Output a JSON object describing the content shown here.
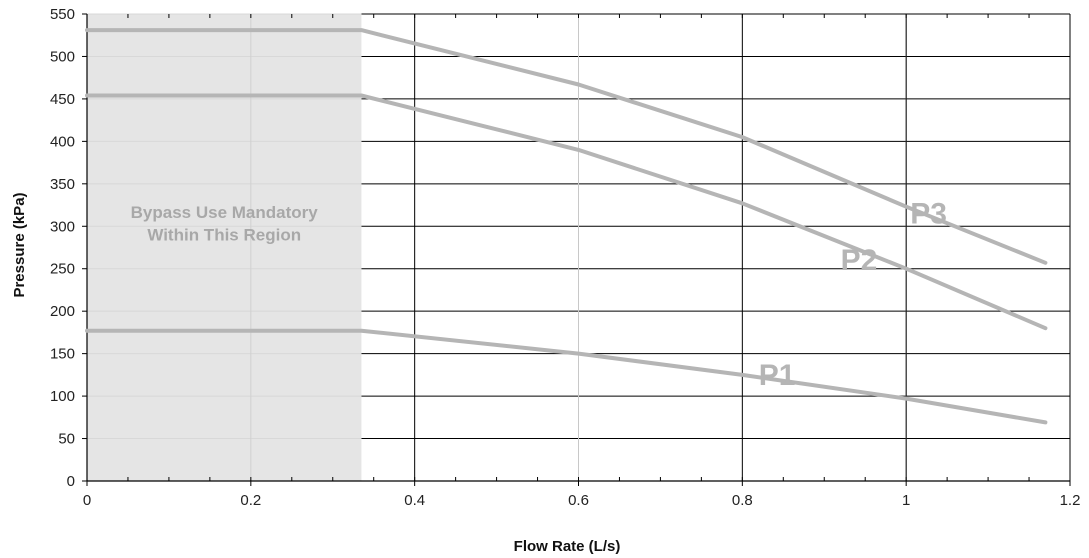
{
  "chart_data": {
    "type": "line",
    "xlabel": "Flow Rate (L/s)",
    "ylabel": "Pressure (kPa)",
    "xlim": [
      0,
      1.2
    ],
    "ylim": [
      0,
      550
    ],
    "x_ticks": [
      "0",
      "0.2",
      "0.4",
      "0.6",
      "0.8",
      "1",
      "1.2"
    ],
    "y_ticks": [
      "0",
      "50",
      "100",
      "150",
      "200",
      "250",
      "300",
      "350",
      "400",
      "450",
      "500",
      "550"
    ],
    "grid": true,
    "region": {
      "x_range": [
        0,
        0.335
      ],
      "label_line1": "Bypass Use Mandatory",
      "label_line2": "Within This Region",
      "color": "#e5e5e5",
      "text_color": "#a8a8a8"
    },
    "series_color": "#b5b5b5",
    "series": [
      {
        "name": "P1",
        "points": [
          [
            0,
            177
          ],
          [
            0.335,
            177
          ],
          [
            0.6,
            150
          ],
          [
            0.8,
            125
          ],
          [
            1.0,
            97
          ],
          [
            1.17,
            69
          ]
        ]
      },
      {
        "name": "P2",
        "points": [
          [
            0,
            454
          ],
          [
            0.335,
            454
          ],
          [
            0.6,
            390
          ],
          [
            0.8,
            327
          ],
          [
            1.0,
            250
          ],
          [
            1.17,
            180
          ]
        ]
      },
      {
        "name": "P3",
        "points": [
          [
            0,
            531
          ],
          [
            0.335,
            531
          ],
          [
            0.6,
            467
          ],
          [
            0.8,
            405
          ],
          [
            1.0,
            323
          ],
          [
            1.17,
            257
          ]
        ]
      }
    ]
  }
}
